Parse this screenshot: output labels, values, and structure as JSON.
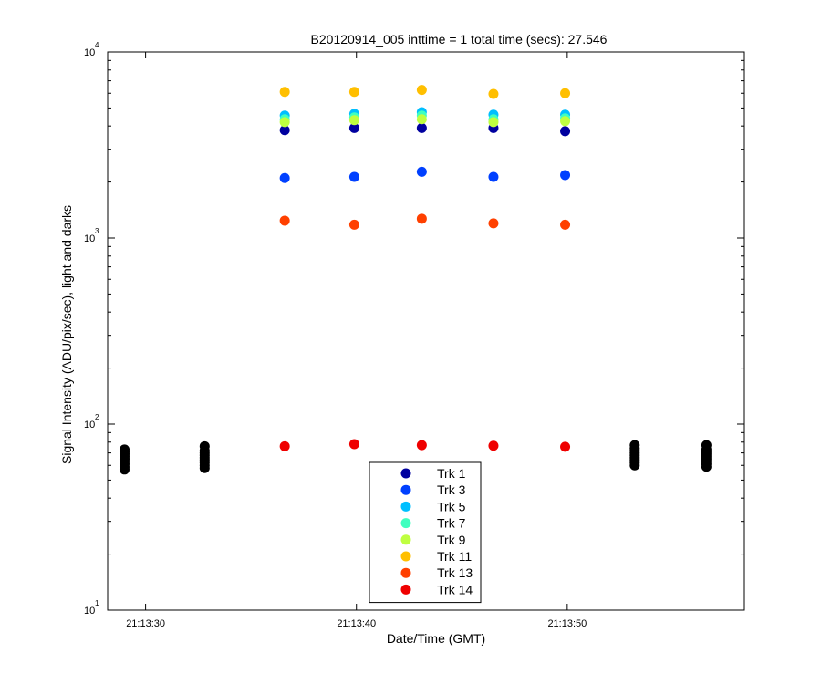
{
  "chart_data": {
    "type": "scatter",
    "title": "B20120914_005 inttime = 1 total time (secs): 27.546",
    "xlabel": "Date/Time (GMT)",
    "ylabel": "Signal Intensity (ADU/pix/sec), light and darks",
    "yscale": "log",
    "ylim": [
      10,
      10000
    ],
    "xlim": [
      "21:13:28.2",
      "21:13:58.4"
    ],
    "x_ticks": [
      "21:13:30",
      "21:13:40",
      "21:13:50"
    ],
    "y_ticks": [
      {
        "base": "10",
        "exp": "1",
        "value": 10
      },
      {
        "base": "10",
        "exp": "2",
        "value": 100
      },
      {
        "base": "10",
        "exp": "3",
        "value": 1000
      },
      {
        "base": "10",
        "exp": "4",
        "value": 10000
      }
    ],
    "legend_position": "bottom-center",
    "light_times": [
      "21:13:36.6",
      "21:13:39.9",
      "21:13:43.1",
      "21:13:46.5",
      "21:13:49.9"
    ],
    "series": [
      {
        "name": "Trk 1",
        "color": "#00009f",
        "values": [
          3800,
          3900,
          3900,
          3900,
          3750
        ]
      },
      {
        "name": "Trk 3",
        "color": "#0040ff",
        "values": [
          2100,
          2130,
          2270,
          2130,
          2180
        ]
      },
      {
        "name": "Trk 5",
        "color": "#00bfff",
        "values": [
          4550,
          4650,
          4750,
          4600,
          4600
        ]
      },
      {
        "name": "Trk 7",
        "color": "#40ffbf",
        "values": [
          4350,
          4450,
          4550,
          4350,
          4400
        ]
      },
      {
        "name": "Trk 9",
        "color": "#bfff40",
        "values": [
          4200,
          4300,
          4350,
          4200,
          4250
        ]
      },
      {
        "name": "Trk 11",
        "color": "#ffbf00",
        "values": [
          6100,
          6100,
          6250,
          5950,
          6000
        ]
      },
      {
        "name": "Trk 13",
        "color": "#ff4000",
        "values": [
          1240,
          1180,
          1270,
          1200,
          1180
        ]
      },
      {
        "name": "Trk 14",
        "color": "#ef0000",
        "values": [
          76,
          78,
          77,
          76.5,
          75.5
        ]
      }
    ],
    "darks": {
      "color": "#000000",
      "times": [
        "21:13:29.0",
        "21:13:32.8",
        "21:13:53.2",
        "21:13:56.6"
      ],
      "values": [
        [
          57,
          59,
          61,
          63,
          65,
          67,
          69,
          71,
          73
        ],
        [
          58,
          60,
          62,
          64,
          66,
          68,
          70,
          72,
          76
        ],
        [
          60,
          62,
          64,
          66,
          68,
          70,
          72,
          74,
          77
        ],
        [
          59,
          61,
          63,
          65,
          67,
          69,
          71,
          73,
          77
        ]
      ]
    }
  }
}
